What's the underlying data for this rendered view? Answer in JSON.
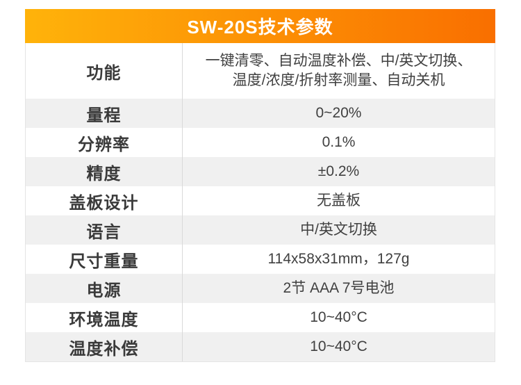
{
  "header": {
    "title": "SW-20S技术参数"
  },
  "colors": {
    "gradient_left": "#FFB30A",
    "gradient_right": "#F96F00",
    "header_text": "#FFFFFF",
    "row_shade": "#F0F0F0",
    "divider": "#D9D9D9",
    "label_text": "#3A3A3A",
    "value_text": "#404040"
  },
  "table": {
    "rows": [
      {
        "label": "功能",
        "value": "一键清零、自动温度补偿、中/英文切换、\n温度/浓度/折射率测量、自动关机"
      },
      {
        "label": "量程",
        "value": "0~20%"
      },
      {
        "label": "分辨率",
        "value": "0.1%"
      },
      {
        "label": "精度",
        "value": "±0.2%"
      },
      {
        "label": "盖板设计",
        "value": "无盖板"
      },
      {
        "label": "语言",
        "value": "中/英文切换"
      },
      {
        "label": "尺寸重量",
        "value": "114x58x31mm，127g"
      },
      {
        "label": "电源",
        "value": "2节 AAA 7号电池"
      },
      {
        "label": "环境温度",
        "value": "10~40°C"
      },
      {
        "label": "温度补偿",
        "value": "10~40°C"
      }
    ]
  }
}
